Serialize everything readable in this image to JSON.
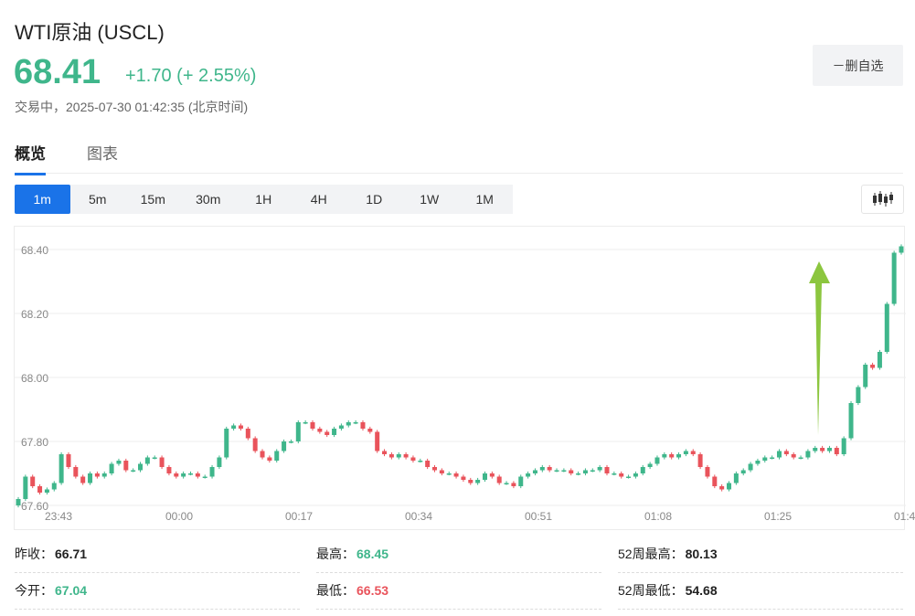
{
  "header": {
    "title": "WTI原油 (USCL)",
    "price": "68.41",
    "change": "+1.70 (+ 2.55%)",
    "status": "交易中，2025-07-30 01:42:35 (北京时间)",
    "watch_button": "－删自选"
  },
  "tabs": [
    {
      "label": "概览",
      "active": true
    },
    {
      "label": "图表",
      "active": false
    }
  ],
  "periods": [
    {
      "label": "1m",
      "active": true
    },
    {
      "label": "5m",
      "active": false
    },
    {
      "label": "15m",
      "active": false
    },
    {
      "label": "30m",
      "active": false
    },
    {
      "label": "1H",
      "active": false
    },
    {
      "label": "4H",
      "active": false
    },
    {
      "label": "1D",
      "active": false
    },
    {
      "label": "1W",
      "active": false
    },
    {
      "label": "1M",
      "active": false
    }
  ],
  "chart_type_icon": "candlestick-icon",
  "chart_data": {
    "type": "candlestick",
    "y_ticks": [
      "68.40",
      "68.20",
      "68.00",
      "67.80",
      "67.60"
    ],
    "ylim": [
      67.6,
      68.45
    ],
    "x_ticks": [
      "23:43",
      "00:00",
      "00:17",
      "00:34",
      "00:51",
      "01:08",
      "01:25",
      "01:4"
    ],
    "grid": true,
    "up_color": "#3fb68b",
    "down_color": "#e9535b",
    "annotation": "green upward arrow near 01:30",
    "closes": [
      67.62,
      67.69,
      67.66,
      67.64,
      67.65,
      67.67,
      67.76,
      67.72,
      67.69,
      67.67,
      67.7,
      67.69,
      67.7,
      67.73,
      67.74,
      67.71,
      67.71,
      67.73,
      67.75,
      67.75,
      67.72,
      67.7,
      67.69,
      67.7,
      67.7,
      67.69,
      67.69,
      67.72,
      67.75,
      67.84,
      67.85,
      67.84,
      67.81,
      67.77,
      67.75,
      67.74,
      67.77,
      67.8,
      67.8,
      67.86,
      67.86,
      67.84,
      67.83,
      67.82,
      67.84,
      67.85,
      67.86,
      67.86,
      67.84,
      67.83,
      67.77,
      67.76,
      67.75,
      67.76,
      67.75,
      67.74,
      67.74,
      67.72,
      67.71,
      67.7,
      67.7,
      67.69,
      67.68,
      67.67,
      67.68,
      67.7,
      67.69,
      67.67,
      67.67,
      67.66,
      67.69,
      67.7,
      67.71,
      67.72,
      67.71,
      67.71,
      67.71,
      67.7,
      67.7,
      67.71,
      67.71,
      67.72,
      67.7,
      67.7,
      67.69,
      67.69,
      67.7,
      67.72,
      67.73,
      67.75,
      67.76,
      67.75,
      67.76,
      67.77,
      67.76,
      67.72,
      67.69,
      67.66,
      67.65,
      67.67,
      67.7,
      67.71,
      67.73,
      67.74,
      67.75,
      67.75,
      67.77,
      67.76,
      67.75,
      67.75,
      67.77,
      67.78,
      67.77,
      67.78,
      67.76,
      67.81,
      67.92,
      67.97,
      68.04,
      68.03,
      68.08,
      68.23,
      68.39,
      68.41
    ]
  },
  "stats": [
    [
      {
        "label": "昨收：",
        "value": "66.71",
        "color": "normal"
      },
      {
        "label": "最高：",
        "value": "68.45",
        "color": "green"
      },
      {
        "label": "52周最高：",
        "value": "80.13",
        "color": "normal"
      }
    ],
    [
      {
        "label": "今开：",
        "value": "67.04",
        "color": "green"
      },
      {
        "label": "最低：",
        "value": "66.53",
        "color": "red"
      },
      {
        "label": "52周最低：",
        "value": "54.68",
        "color": "normal"
      }
    ]
  ]
}
